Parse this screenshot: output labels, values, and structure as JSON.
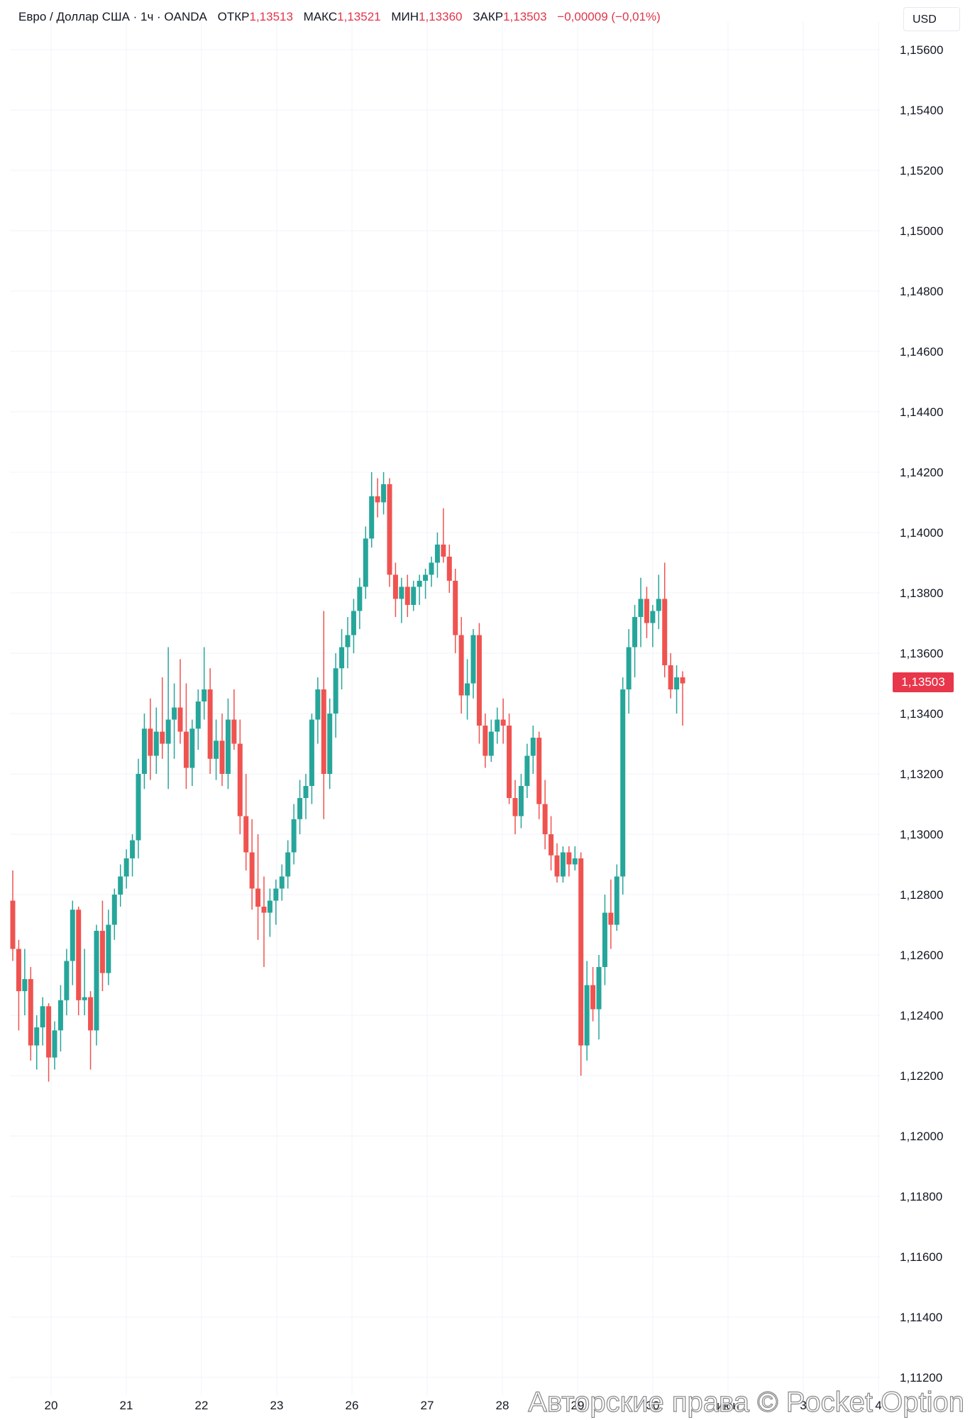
{
  "header": {
    "title": "Евро / Доллар США · 1ч · OANDA",
    "open_label": "ОТКР",
    "open": "1,13513",
    "high_label": "МАКС",
    "high": "1,13521",
    "low_label": "МИН",
    "low": "1,13360",
    "close_label": "ЗАКР",
    "close": "1,13503",
    "change": "−0,00009 (−0,01%)"
  },
  "currency_button": "USD",
  "last_price_label": "1,13503",
  "watermark": "Авторские права © Pocket Option",
  "colors": {
    "up": "#26a69a",
    "down": "#ef5350",
    "grid": "#f0f3fa",
    "text": "#131722",
    "price_label_bg": "#e8364b"
  },
  "chart_data": {
    "type": "candlestick",
    "title": "Евро / Доллар США · 1ч · OANDA",
    "ylim": [
      1.112,
      1.156
    ],
    "y_ticks": [
      "1,15600",
      "1,15400",
      "1,15200",
      "1,15000",
      "1,14800",
      "1,14600",
      "1,14400",
      "1,14200",
      "1,14000",
      "1,13800",
      "1,13600",
      "1,13400",
      "1,13200",
      "1,13000",
      "1,12800",
      "1,12600",
      "1,12400",
      "1,12200",
      "1,12000",
      "1,11800",
      "1,11600",
      "1,11400",
      "1,11200"
    ],
    "x_ticks": [
      "20",
      "21",
      "22",
      "23",
      "26",
      "27",
      "28",
      "29",
      "30",
      "июн",
      "3",
      "4"
    ],
    "last_price": 1.13503,
    "series": [
      {
        "date": "20",
        "points": [
          [
            1.1278,
            1.1288,
            1.1258,
            1.1262
          ],
          [
            1.1262,
            1.1265,
            1.1235,
            1.1248
          ],
          [
            1.1248,
            1.1262,
            1.124,
            1.1252
          ],
          [
            1.1252,
            1.1256,
            1.1225,
            1.123
          ],
          [
            1.123,
            1.124,
            1.1222,
            1.1236
          ],
          [
            1.1236,
            1.1246,
            1.123,
            1.1243
          ],
          [
            1.1243,
            1.1244,
            1.1218,
            1.1226
          ],
          [
            1.1226,
            1.1238,
            1.1222,
            1.1235
          ],
          [
            1.1235,
            1.125,
            1.1228,
            1.1245
          ],
          [
            1.1245,
            1.1262,
            1.124,
            1.1258
          ],
          [
            1.1258,
            1.1278,
            1.125,
            1.1275
          ],
          [
            1.1275,
            1.1276,
            1.124,
            1.1245
          ],
          [
            1.1245,
            1.1262,
            1.124,
            1.1246
          ],
          [
            1.1246,
            1.1248,
            1.1222,
            1.1235
          ]
        ]
      },
      {
        "date": "21",
        "points": [
          [
            1.1235,
            1.127,
            1.123,
            1.1268
          ],
          [
            1.1268,
            1.1278,
            1.1248,
            1.1254
          ],
          [
            1.1254,
            1.1275,
            1.125,
            1.127
          ],
          [
            1.127,
            1.1282,
            1.1265,
            1.128
          ],
          [
            1.128,
            1.129,
            1.1276,
            1.1286
          ],
          [
            1.1286,
            1.1295,
            1.1282,
            1.1292
          ],
          [
            1.1292,
            1.13,
            1.1286,
            1.1298
          ],
          [
            1.1298,
            1.1325,
            1.1292,
            1.132
          ],
          [
            1.132,
            1.134,
            1.1315,
            1.1335
          ],
          [
            1.1335,
            1.1345,
            1.1318,
            1.1326
          ],
          [
            1.1326,
            1.1342,
            1.132,
            1.1334
          ],
          [
            1.1334,
            1.1352,
            1.1325,
            1.133
          ],
          [
            1.133,
            1.1362,
            1.1315,
            1.1338
          ],
          [
            1.1338,
            1.135,
            1.1325,
            1.1342
          ],
          [
            1.1342,
            1.1358,
            1.133,
            1.1334
          ]
        ]
      },
      {
        "date": "22",
        "points": [
          [
            1.1334,
            1.135,
            1.1315,
            1.1322
          ],
          [
            1.1322,
            1.1338,
            1.1316,
            1.1335
          ],
          [
            1.1335,
            1.1348,
            1.1328,
            1.1344
          ],
          [
            1.1344,
            1.1362,
            1.1338,
            1.1348
          ],
          [
            1.1348,
            1.1355,
            1.132,
            1.1325
          ],
          [
            1.1325,
            1.1338,
            1.1318,
            1.1331
          ],
          [
            1.1331,
            1.134,
            1.1316,
            1.132
          ],
          [
            1.132,
            1.1345,
            1.1315,
            1.1338
          ],
          [
            1.1338,
            1.1348,
            1.1328,
            1.133
          ],
          [
            1.133,
            1.1338,
            1.13,
            1.1306
          ],
          [
            1.1306,
            1.132,
            1.1288,
            1.1294
          ],
          [
            1.1294,
            1.1305,
            1.1275,
            1.1282
          ],
          [
            1.1282,
            1.13,
            1.1265,
            1.1276
          ],
          [
            1.1276,
            1.1286,
            1.1256,
            1.1274
          ],
          [
            1.1274,
            1.1282,
            1.1266,
            1.1278
          ]
        ]
      },
      {
        "date": "23",
        "points": [
          [
            1.1278,
            1.1285,
            1.127,
            1.1282
          ],
          [
            1.1282,
            1.129,
            1.1278,
            1.1286
          ],
          [
            1.1286,
            1.1298,
            1.1282,
            1.1294
          ],
          [
            1.1294,
            1.131,
            1.129,
            1.1305
          ],
          [
            1.1305,
            1.1318,
            1.13,
            1.1312
          ],
          [
            1.1312,
            1.132,
            1.1305,
            1.1316
          ],
          [
            1.1316,
            1.134,
            1.131,
            1.1338
          ],
          [
            1.1338,
            1.1352,
            1.133,
            1.1348
          ],
          [
            1.1348,
            1.1374,
            1.1305,
            1.132
          ],
          [
            1.132,
            1.1345,
            1.1315,
            1.134
          ],
          [
            1.134,
            1.136,
            1.1332,
            1.1355
          ],
          [
            1.1355,
            1.1368,
            1.1348,
            1.1362
          ],
          [
            1.1362,
            1.1372,
            1.1355,
            1.1366
          ]
        ]
      },
      {
        "date": "26",
        "points": [
          [
            1.1366,
            1.1378,
            1.136,
            1.1374
          ],
          [
            1.1374,
            1.1385,
            1.1368,
            1.1382
          ],
          [
            1.1382,
            1.1402,
            1.1378,
            1.1398
          ],
          [
            1.1398,
            1.142,
            1.1395,
            1.1412
          ],
          [
            1.1412,
            1.1418,
            1.1405,
            1.141
          ],
          [
            1.141,
            1.142,
            1.1406,
            1.1416
          ],
          [
            1.1416,
            1.1418,
            1.1382,
            1.1386
          ],
          [
            1.1386,
            1.139,
            1.1372,
            1.1378
          ],
          [
            1.1378,
            1.1385,
            1.137,
            1.1382
          ],
          [
            1.1382,
            1.1386,
            1.1372,
            1.1376
          ],
          [
            1.1376,
            1.1384,
            1.1374,
            1.1382
          ],
          [
            1.1382,
            1.1386,
            1.1376,
            1.1384
          ],
          [
            1.1384,
            1.1388,
            1.1378,
            1.1386
          ],
          [
            1.1386,
            1.1392,
            1.1382,
            1.139
          ]
        ]
      },
      {
        "date": "27",
        "points": [
          [
            1.139,
            1.14,
            1.1385,
            1.1396
          ],
          [
            1.1396,
            1.1408,
            1.139,
            1.1392
          ],
          [
            1.1392,
            1.1396,
            1.138,
            1.1384
          ],
          [
            1.1384,
            1.1388,
            1.136,
            1.1366
          ],
          [
            1.1366,
            1.1372,
            1.134,
            1.1346
          ],
          [
            1.1346,
            1.1358,
            1.1338,
            1.135
          ],
          [
            1.135,
            1.1368,
            1.1345,
            1.1366
          ],
          [
            1.1366,
            1.137,
            1.133,
            1.1336
          ],
          [
            1.1336,
            1.134,
            1.1322,
            1.1326
          ],
          [
            1.1326,
            1.1338,
            1.1324,
            1.1334
          ],
          [
            1.1334,
            1.1342,
            1.133,
            1.1338
          ],
          [
            1.1338,
            1.1345,
            1.133,
            1.1336
          ],
          [
            1.1336,
            1.134,
            1.131,
            1.1312
          ],
          [
            1.1312,
            1.1318,
            1.13,
            1.1306
          ],
          [
            1.1306,
            1.132,
            1.1302,
            1.1316
          ]
        ]
      },
      {
        "date": "28",
        "points": [
          [
            1.1316,
            1.133,
            1.1312,
            1.1326
          ],
          [
            1.1326,
            1.1336,
            1.132,
            1.1332
          ],
          [
            1.1332,
            1.1334,
            1.1305,
            1.131
          ],
          [
            1.131,
            1.1318,
            1.1295,
            1.13
          ],
          [
            1.13,
            1.1306,
            1.1288,
            1.1293
          ],
          [
            1.1293,
            1.1297,
            1.1284,
            1.1286
          ],
          [
            1.1286,
            1.1296,
            1.1284,
            1.1294
          ],
          [
            1.1294,
            1.1296,
            1.1286,
            1.129
          ],
          [
            1.129,
            1.1296,
            1.1288,
            1.1292
          ],
          [
            1.1292,
            1.1294,
            1.122,
            1.123
          ],
          [
            1.123,
            1.1258,
            1.1225,
            1.125
          ],
          [
            1.125,
            1.1256,
            1.1238,
            1.1242
          ],
          [
            1.1242,
            1.126,
            1.1232,
            1.1256
          ],
          [
            1.1256,
            1.128,
            1.125,
            1.1274
          ]
        ]
      },
      {
        "date": "29",
        "points": [
          [
            1.1274,
            1.1285,
            1.1262,
            1.127
          ],
          [
            1.127,
            1.129,
            1.1268,
            1.1286
          ],
          [
            1.1286,
            1.1352,
            1.128,
            1.1348
          ],
          [
            1.1348,
            1.1368,
            1.134,
            1.1362
          ],
          [
            1.1362,
            1.1376,
            1.1352,
            1.1372
          ],
          [
            1.1372,
            1.1385,
            1.1362,
            1.1378
          ],
          [
            1.1378,
            1.1382,
            1.1365,
            1.137
          ],
          [
            1.137,
            1.1376,
            1.1362,
            1.1374
          ],
          [
            1.1374,
            1.1386,
            1.1368,
            1.1378
          ],
          [
            1.1378,
            1.139,
            1.1352,
            1.1356
          ],
          [
            1.1356,
            1.136,
            1.1345,
            1.1348
          ],
          [
            1.1348,
            1.1356,
            1.134,
            1.1352
          ],
          [
            1.1352,
            1.1354,
            1.1336,
            1.135
          ]
        ]
      }
    ]
  }
}
